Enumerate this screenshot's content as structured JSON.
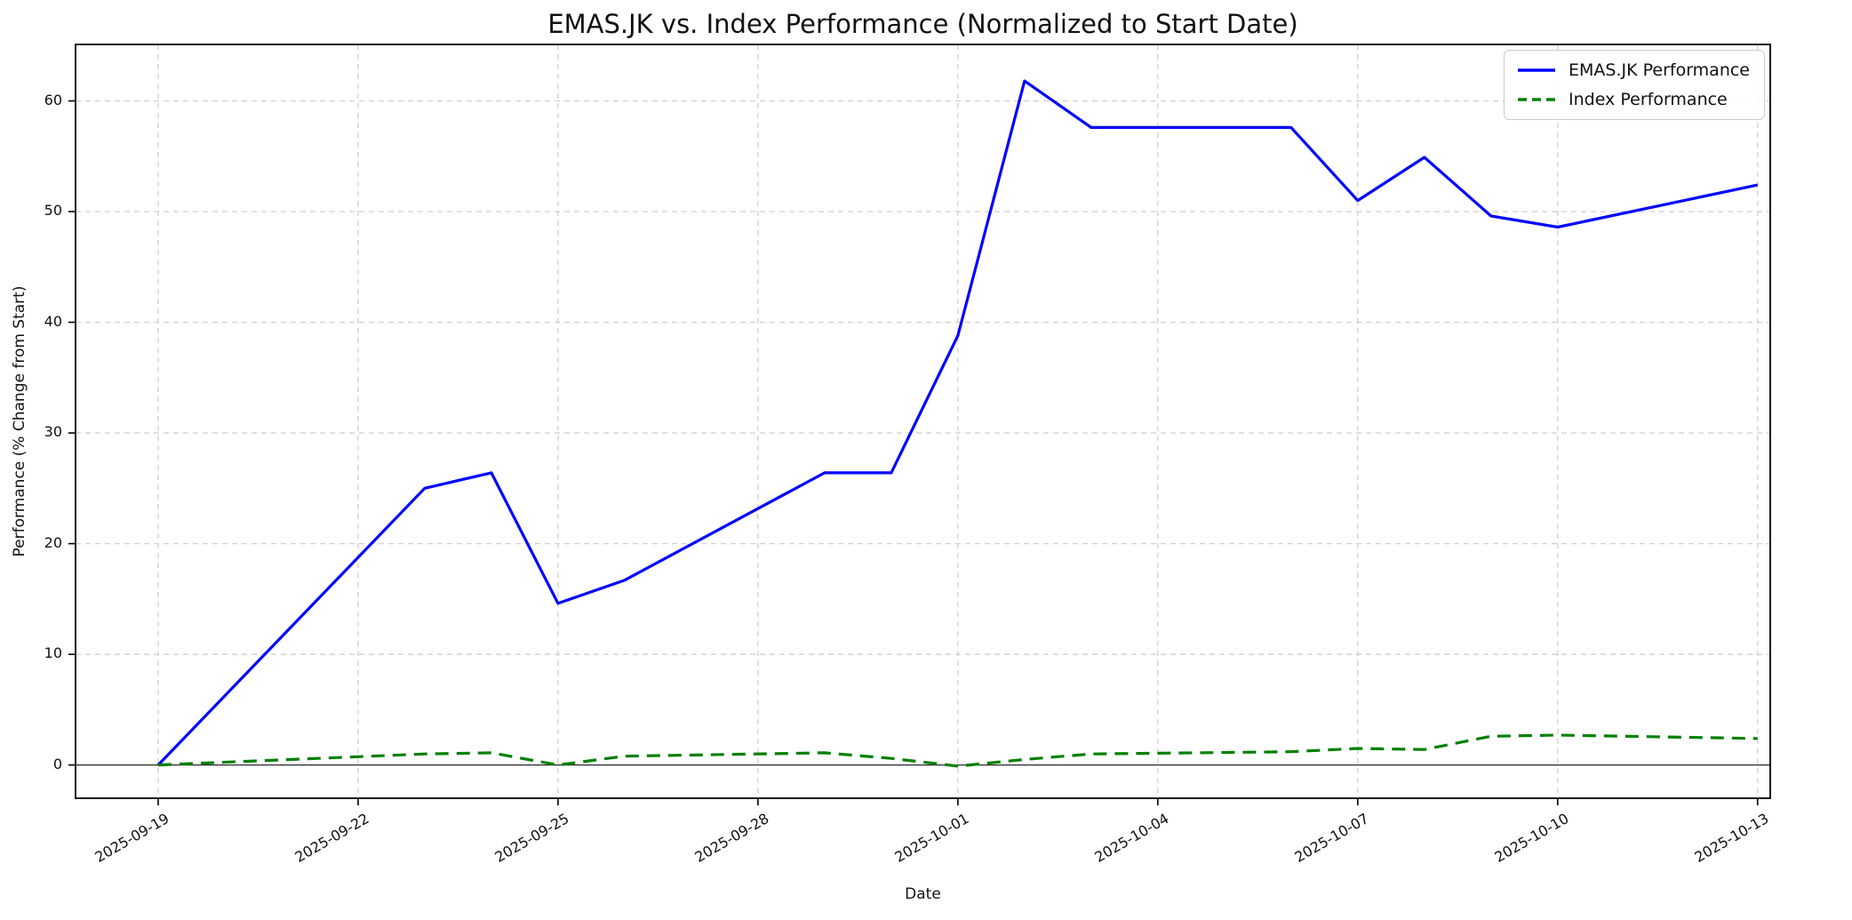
{
  "chart_data": {
    "type": "line",
    "title": "EMAS.JK vs. Index Performance (Normalized to Start Date)",
    "xlabel": "Date",
    "ylabel": "Performance (% Change from Start)",
    "x_dates": [
      "2025-09-19",
      "2025-09-23",
      "2025-09-24",
      "2025-09-25",
      "2025-09-26",
      "2025-09-29",
      "2025-09-30",
      "2025-10-01",
      "2025-10-02",
      "2025-10-03",
      "2025-10-06",
      "2025-10-07",
      "2025-10-08",
      "2025-10-09",
      "2025-10-10",
      "2025-10-13"
    ],
    "series": [
      {
        "name": "EMAS.JK Performance",
        "color": "#0000ff",
        "style": "solid",
        "values": [
          0.0,
          25.0,
          26.4,
          14.6,
          16.7,
          26.4,
          26.4,
          38.8,
          61.8,
          57.6,
          57.6,
          51.0,
          54.9,
          49.6,
          48.6,
          52.4
        ]
      },
      {
        "name": "Index Performance",
        "color": "#008000",
        "style": "dashed",
        "values": [
          0.0,
          1.0,
          1.1,
          0.0,
          0.8,
          1.1,
          0.6,
          -0.1,
          0.5,
          1.0,
          1.2,
          1.5,
          1.4,
          2.6,
          2.7,
          2.4
        ]
      }
    ],
    "x_tick_labels": [
      "2025-09-19",
      "2025-09-22",
      "2025-09-25",
      "2025-09-28",
      "2025-10-01",
      "2025-10-04",
      "2025-10-07",
      "2025-10-10",
      "2025-10-13"
    ],
    "y_ticks": [
      0,
      10,
      20,
      30,
      40,
      50,
      60
    ],
    "ylim": [
      -3.0,
      65.1
    ],
    "xlim_days": [
      -1.24,
      24.19
    ],
    "grid": true,
    "zero_line": true,
    "legend_position": "upper right"
  }
}
